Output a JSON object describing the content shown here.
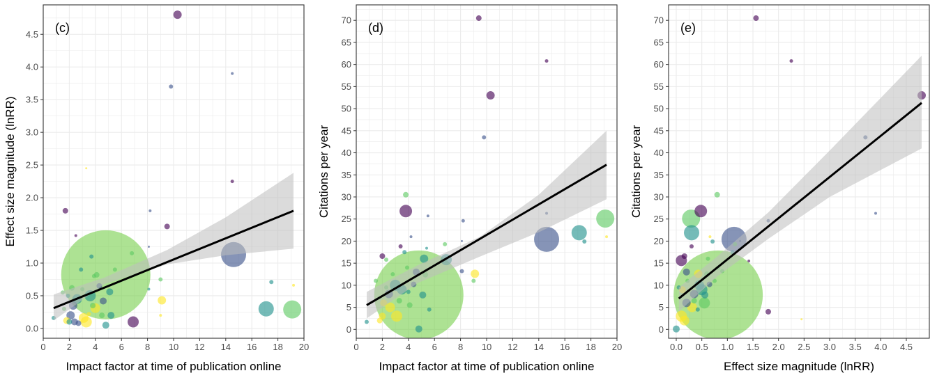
{
  "colors": {
    "panel_background": "#ffffff",
    "gridline": "#ebebeb",
    "panel_border": "#333333",
    "fit_line": "#000000",
    "ribbon": "#bdbdbd",
    "big_green": "#7ad151",
    "purple": "#440154",
    "blue": "#3b528b",
    "teal": "#21918c",
    "green": "#5ec962",
    "yellow": "#fde725"
  },
  "chart_data": [
    {
      "type": "scatter",
      "panel_label": "(c)",
      "xlabel": "Impact factor at time of publication online",
      "ylabel": "Effect size magnitude (lnRR)",
      "xlim": [
        0,
        20
      ],
      "ylim": [
        -0.15,
        4.95
      ],
      "xticks": [
        0,
        2,
        4,
        6,
        8,
        10,
        12,
        14,
        16,
        18,
        20
      ],
      "yticks": [
        0.0,
        0.5,
        1.0,
        1.5,
        2.0,
        2.5,
        3.0,
        3.5,
        4.0,
        4.5
      ],
      "ytick_labels": [
        "0.0",
        "0.5",
        "1.0",
        "1.5",
        "2.0",
        "2.5",
        "3.0",
        "3.5",
        "4.0",
        "4.5"
      ],
      "grid": true,
      "fit": {
        "x": [
          0.8,
          19.2
        ],
        "y": [
          0.31,
          1.8
        ]
      },
      "ribbon": {
        "x": [
          0.8,
          4.7,
          9.5,
          14.0,
          19.2
        ],
        "lower": [
          0.12,
          0.68,
          0.98,
          1.12,
          1.22
        ],
        "upper": [
          0.52,
          0.78,
          1.2,
          1.7,
          2.38
        ]
      },
      "points": [
        {
          "x": 4.8,
          "y": 0.82,
          "r": 64,
          "c": "big_green"
        },
        {
          "x": 10.3,
          "y": 4.8,
          "r": 6,
          "c": "purple"
        },
        {
          "x": 14.5,
          "y": 3.9,
          "r": 2,
          "c": "blue"
        },
        {
          "x": 9.8,
          "y": 3.7,
          "r": 3,
          "c": "blue"
        },
        {
          "x": 3.3,
          "y": 2.45,
          "r": 1.5,
          "c": "yellow"
        },
        {
          "x": 14.5,
          "y": 2.25,
          "r": 2.5,
          "c": "purple"
        },
        {
          "x": 1.7,
          "y": 1.8,
          "r": 4,
          "c": "purple"
        },
        {
          "x": 8.2,
          "y": 1.8,
          "r": 2,
          "c": "blue"
        },
        {
          "x": 9.5,
          "y": 1.56,
          "r": 4,
          "c": "purple"
        },
        {
          "x": 2.5,
          "y": 1.42,
          "r": 2,
          "c": "purple"
        },
        {
          "x": 8.1,
          "y": 1.25,
          "r": 1.5,
          "c": "blue"
        },
        {
          "x": 14.6,
          "y": 1.13,
          "r": 18,
          "c": "blue"
        },
        {
          "x": 6.8,
          "y": 1.15,
          "r": 3,
          "c": "green"
        },
        {
          "x": 3.7,
          "y": 1.1,
          "r": 3,
          "c": "teal"
        },
        {
          "x": 17.1,
          "y": 0.3,
          "r": 11,
          "c": "teal"
        },
        {
          "x": 19.1,
          "y": 0.29,
          "r": 13,
          "c": "green"
        },
        {
          "x": 17.5,
          "y": 0.71,
          "r": 3,
          "c": "teal"
        },
        {
          "x": 19.2,
          "y": 0.66,
          "r": 2,
          "c": "yellow"
        },
        {
          "x": 6.9,
          "y": 0.1,
          "r": 8,
          "c": "purple"
        },
        {
          "x": 9.1,
          "y": 0.43,
          "r": 6,
          "c": "yellow"
        },
        {
          "x": 9.0,
          "y": 0.2,
          "r": 2,
          "c": "yellow"
        },
        {
          "x": 9.0,
          "y": 0.75,
          "r": 3,
          "c": "green"
        },
        {
          "x": 8.1,
          "y": 0.6,
          "r": 2,
          "c": "teal"
        },
        {
          "x": 0.8,
          "y": 0.16,
          "r": 3,
          "c": "teal"
        },
        {
          "x": 3.3,
          "y": 0.1,
          "r": 8,
          "c": "yellow"
        },
        {
          "x": 3.1,
          "y": 0.16,
          "r": 7,
          "c": "yellow"
        },
        {
          "x": 2.6,
          "y": 0.45,
          "r": 7,
          "c": "teal"
        },
        {
          "x": 2.3,
          "y": 0.35,
          "r": 6,
          "c": "blue"
        },
        {
          "x": 2.1,
          "y": 0.2,
          "r": 6,
          "c": "blue"
        },
        {
          "x": 2.4,
          "y": 0.1,
          "r": 5,
          "c": "blue"
        },
        {
          "x": 2.7,
          "y": 0.08,
          "r": 4,
          "c": "blue"
        },
        {
          "x": 1.8,
          "y": 0.12,
          "r": 5,
          "c": "yellow"
        },
        {
          "x": 3.6,
          "y": 0.5,
          "r": 8,
          "c": "teal"
        },
        {
          "x": 4.0,
          "y": 0.31,
          "r": 7,
          "c": "yellow"
        },
        {
          "x": 4.3,
          "y": 0.65,
          "r": 4,
          "c": "blue"
        },
        {
          "x": 4.6,
          "y": 0.42,
          "r": 5,
          "c": "blue"
        },
        {
          "x": 5.1,
          "y": 0.56,
          "r": 5,
          "c": "teal"
        },
        {
          "x": 5.2,
          "y": 0.2,
          "r": 5,
          "c": "teal"
        },
        {
          "x": 4.8,
          "y": 0.05,
          "r": 5,
          "c": "teal"
        },
        {
          "x": 2.2,
          "y": 0.62,
          "r": 4,
          "c": "green"
        },
        {
          "x": 3.0,
          "y": 0.6,
          "r": 3,
          "c": "green"
        },
        {
          "x": 1.6,
          "y": 0.3,
          "r": 3,
          "c": "green"
        },
        {
          "x": 3.8,
          "y": 0.35,
          "r": 4,
          "c": "green"
        },
        {
          "x": 1.9,
          "y": 0.5,
          "r": 3,
          "c": "teal"
        },
        {
          "x": 4.5,
          "y": 0.2,
          "r": 4,
          "c": "green"
        },
        {
          "x": 3.5,
          "y": 0.22,
          "r": 3,
          "c": "yellow"
        },
        {
          "x": 5.5,
          "y": 0.9,
          "r": 3,
          "c": "green"
        },
        {
          "x": 2.9,
          "y": 0.9,
          "r": 3,
          "c": "teal"
        },
        {
          "x": 4.1,
          "y": 0.82,
          "r": 4,
          "c": "green"
        },
        {
          "x": 3.9,
          "y": 0.8,
          "r": 3,
          "c": "green"
        },
        {
          "x": 1.5,
          "y": 0.55,
          "r": 3,
          "c": "green"
        },
        {
          "x": 2.0,
          "y": 0.1,
          "r": 4,
          "c": "teal"
        }
      ]
    },
    {
      "type": "scatter",
      "panel_label": "(d)",
      "xlabel": "Impact factor at time of publication online",
      "ylabel": "Citations per year",
      "xlim": [
        0,
        20
      ],
      "ylim": [
        -2,
        73.5
      ],
      "xticks": [
        0,
        2,
        4,
        6,
        8,
        10,
        12,
        14,
        16,
        18,
        20
      ],
      "yticks": [
        0,
        5,
        10,
        15,
        20,
        25,
        30,
        35,
        40,
        45,
        50,
        55,
        60,
        65,
        70
      ],
      "ytick_labels": [
        "0",
        "5",
        "10",
        "15",
        "20",
        "25",
        "30",
        "35",
        "40",
        "45",
        "50",
        "55",
        "60",
        "65",
        "70"
      ],
      "grid": true,
      "fit": {
        "x": [
          0.8,
          19.2
        ],
        "y": [
          5.5,
          37.3
        ]
      },
      "ribbon": {
        "x": [
          0.8,
          4.7,
          9.5,
          14.0,
          19.2
        ],
        "lower": [
          2.5,
          10.5,
          16.5,
          22.0,
          29.5
        ],
        "upper": [
          8.5,
          14.5,
          21.0,
          30.5,
          45.0
        ]
      },
      "points": [
        {
          "x": 4.8,
          "y": 7.8,
          "r": 64,
          "c": "big_green"
        },
        {
          "x": 9.4,
          "y": 70.5,
          "r": 4,
          "c": "purple"
        },
        {
          "x": 14.6,
          "y": 60.8,
          "r": 2.5,
          "c": "purple"
        },
        {
          "x": 10.3,
          "y": 53.0,
          "r": 6,
          "c": "purple"
        },
        {
          "x": 9.8,
          "y": 43.5,
          "r": 3,
          "c": "blue"
        },
        {
          "x": 3.8,
          "y": 30.5,
          "r": 4,
          "c": "green"
        },
        {
          "x": 3.8,
          "y": 26.8,
          "r": 9,
          "c": "purple"
        },
        {
          "x": 5.5,
          "y": 25.7,
          "r": 2,
          "c": "blue"
        },
        {
          "x": 8.2,
          "y": 24.6,
          "r": 2.5,
          "c": "blue"
        },
        {
          "x": 14.6,
          "y": 26.3,
          "r": 2,
          "c": "blue"
        },
        {
          "x": 14.6,
          "y": 20.4,
          "r": 18,
          "c": "blue"
        },
        {
          "x": 17.1,
          "y": 21.9,
          "r": 11,
          "c": "teal"
        },
        {
          "x": 17.5,
          "y": 19.9,
          "r": 3,
          "c": "teal"
        },
        {
          "x": 19.1,
          "y": 25.1,
          "r": 13,
          "c": "green"
        },
        {
          "x": 19.2,
          "y": 21.0,
          "r": 2,
          "c": "yellow"
        },
        {
          "x": 9.1,
          "y": 12.6,
          "r": 6,
          "c": "yellow"
        },
        {
          "x": 9.0,
          "y": 11.0,
          "r": 3,
          "c": "green"
        },
        {
          "x": 8.1,
          "y": 13.2,
          "r": 3,
          "c": "blue"
        },
        {
          "x": 8.1,
          "y": 20.0,
          "r": 1.5,
          "c": "blue"
        },
        {
          "x": 6.8,
          "y": 19.3,
          "r": 3,
          "c": "green"
        },
        {
          "x": 6.9,
          "y": 15.8,
          "r": 8,
          "c": "teal"
        },
        {
          "x": 4.2,
          "y": 21.0,
          "r": 2,
          "c": "blue"
        },
        {
          "x": 3.4,
          "y": 18.8,
          "r": 3,
          "c": "purple"
        },
        {
          "x": 5.4,
          "y": 18.4,
          "r": 2,
          "c": "teal"
        },
        {
          "x": 2.0,
          "y": 16.6,
          "r": 4,
          "c": "purple"
        },
        {
          "x": 2.3,
          "y": 15.8,
          "r": 3,
          "c": "green"
        },
        {
          "x": 3.7,
          "y": 17.5,
          "r": 3,
          "c": "teal"
        },
        {
          "x": 5.2,
          "y": 16.0,
          "r": 6,
          "c": "teal"
        },
        {
          "x": 4.6,
          "y": 13.0,
          "r": 5,
          "c": "blue"
        },
        {
          "x": 5.3,
          "y": 12.4,
          "r": 4,
          "c": "green"
        },
        {
          "x": 3.0,
          "y": 10.0,
          "r": 8,
          "c": "teal"
        },
        {
          "x": 3.5,
          "y": 9.0,
          "r": 7,
          "c": "teal"
        },
        {
          "x": 2.5,
          "y": 8.0,
          "r": 6,
          "c": "blue"
        },
        {
          "x": 2.1,
          "y": 6.0,
          "r": 5,
          "c": "yellow"
        },
        {
          "x": 2.6,
          "y": 5.0,
          "r": 7,
          "c": "yellow"
        },
        {
          "x": 3.1,
          "y": 3.0,
          "r": 8,
          "c": "yellow"
        },
        {
          "x": 2.0,
          "y": 3.0,
          "r": 5,
          "c": "yellow"
        },
        {
          "x": 1.8,
          "y": 2.0,
          "r": 4,
          "c": "yellow"
        },
        {
          "x": 0.8,
          "y": 1.7,
          "r": 3,
          "c": "teal"
        },
        {
          "x": 4.8,
          "y": 0.1,
          "r": 5,
          "c": "teal"
        },
        {
          "x": 5.1,
          "y": 7.8,
          "r": 5,
          "c": "teal"
        },
        {
          "x": 4.4,
          "y": 10.2,
          "r": 4,
          "c": "blue"
        },
        {
          "x": 1.5,
          "y": 11.0,
          "r": 3,
          "c": "green"
        },
        {
          "x": 3.9,
          "y": 14.0,
          "r": 3,
          "c": "green"
        },
        {
          "x": 2.8,
          "y": 12.5,
          "r": 3,
          "c": "green"
        },
        {
          "x": 4.1,
          "y": 5.5,
          "r": 4,
          "c": "green"
        },
        {
          "x": 5.6,
          "y": 4.5,
          "r": 3,
          "c": "teal"
        },
        {
          "x": 2.3,
          "y": 9.5,
          "r": 3,
          "c": "green"
        },
        {
          "x": 3.3,
          "y": 6.5,
          "r": 4,
          "c": "green"
        },
        {
          "x": 4.0,
          "y": 8.5,
          "r": 3,
          "c": "teal"
        }
      ]
    },
    {
      "type": "scatter",
      "panel_label": "(e)",
      "xlabel": "Effect size magnitude (lnRR)",
      "ylabel": "Citations per year",
      "xlim": [
        -0.15,
        4.95
      ],
      "ylim": [
        -2,
        73.5
      ],
      "xticks": [
        0.0,
        0.5,
        1.0,
        1.5,
        2.0,
        2.5,
        3.0,
        3.5,
        4.0,
        4.5
      ],
      "xtick_labels": [
        "0.0",
        "0.5",
        "1.0",
        "1.5",
        "2.0",
        "2.5",
        "3.0",
        "3.5",
        "4.0",
        "4.5"
      ],
      "yticks": [
        0,
        5,
        10,
        15,
        20,
        25,
        30,
        35,
        40,
        45,
        50,
        55,
        60,
        65,
        70
      ],
      "ytick_labels": [
        "0",
        "5",
        "10",
        "15",
        "20",
        "25",
        "30",
        "35",
        "40",
        "45",
        "50",
        "55",
        "60",
        "65",
        "70"
      ],
      "grid": true,
      "fit": {
        "x": [
          0.05,
          4.8
        ],
        "y": [
          7.0,
          51.3
        ]
      },
      "ribbon": {
        "x": [
          0.05,
          0.8,
          1.8,
          3.0,
          4.8
        ],
        "lower": [
          4.0,
          12.0,
          20.5,
          30.0,
          41.0
        ],
        "upper": [
          9.5,
          16.5,
          26.5,
          40.5,
          62.0
        ]
      },
      "points": [
        {
          "x": 0.82,
          "y": 7.8,
          "r": 64,
          "c": "big_green"
        },
        {
          "x": 1.56,
          "y": 70.5,
          "r": 4,
          "c": "purple"
        },
        {
          "x": 2.25,
          "y": 60.8,
          "r": 2.5,
          "c": "purple"
        },
        {
          "x": 4.8,
          "y": 53.0,
          "r": 6,
          "c": "purple"
        },
        {
          "x": 3.7,
          "y": 43.5,
          "r": 3,
          "c": "blue"
        },
        {
          "x": 3.9,
          "y": 26.3,
          "r": 2,
          "c": "blue"
        },
        {
          "x": 0.8,
          "y": 30.5,
          "r": 4,
          "c": "green"
        },
        {
          "x": 0.48,
          "y": 26.8,
          "r": 9,
          "c": "purple"
        },
        {
          "x": 0.29,
          "y": 25.1,
          "r": 13,
          "c": "green"
        },
        {
          "x": 0.3,
          "y": 21.9,
          "r": 11,
          "c": "teal"
        },
        {
          "x": 1.13,
          "y": 20.4,
          "r": 18,
          "c": "blue"
        },
        {
          "x": 1.8,
          "y": 24.6,
          "r": 2.5,
          "c": "blue"
        },
        {
          "x": 1.8,
          "y": 4.0,
          "r": 4,
          "c": "purple"
        },
        {
          "x": 2.45,
          "y": 2.3,
          "r": 1.5,
          "c": "yellow"
        },
        {
          "x": 0.1,
          "y": 15.6,
          "r": 8,
          "c": "purple"
        },
        {
          "x": 0.16,
          "y": 16.6,
          "r": 4,
          "c": "purple"
        },
        {
          "x": 0.71,
          "y": 19.9,
          "r": 3,
          "c": "teal"
        },
        {
          "x": 0.66,
          "y": 21.0,
          "r": 2,
          "c": "yellow"
        },
        {
          "x": 0.43,
          "y": 12.6,
          "r": 6,
          "c": "yellow"
        },
        {
          "x": 1.25,
          "y": 20.0,
          "r": 1.5,
          "c": "blue"
        },
        {
          "x": 1.42,
          "y": 15.5,
          "r": 2,
          "c": "purple"
        },
        {
          "x": 1.15,
          "y": 19.3,
          "r": 3,
          "c": "green"
        },
        {
          "x": 0.0,
          "y": 0.1,
          "r": 5,
          "c": "teal"
        },
        {
          "x": 0.1,
          "y": 3.0,
          "r": 8,
          "c": "yellow"
        },
        {
          "x": 0.16,
          "y": 2.0,
          "r": 7,
          "c": "yellow"
        },
        {
          "x": 0.2,
          "y": 6.0,
          "r": 6,
          "c": "blue"
        },
        {
          "x": 0.35,
          "y": 8.0,
          "r": 6,
          "c": "blue"
        },
        {
          "x": 0.45,
          "y": 10.0,
          "r": 7,
          "c": "teal"
        },
        {
          "x": 0.5,
          "y": 9.0,
          "r": 8,
          "c": "teal"
        },
        {
          "x": 0.56,
          "y": 7.8,
          "r": 5,
          "c": "teal"
        },
        {
          "x": 0.31,
          "y": 5.0,
          "r": 7,
          "c": "yellow"
        },
        {
          "x": 0.12,
          "y": 9.0,
          "r": 5,
          "c": "yellow"
        },
        {
          "x": 0.6,
          "y": 12.5,
          "r": 4,
          "c": "green"
        },
        {
          "x": 0.9,
          "y": 13.2,
          "r": 3,
          "c": "green"
        },
        {
          "x": 0.62,
          "y": 16.0,
          "r": 3,
          "c": "green"
        },
        {
          "x": 0.75,
          "y": 11.0,
          "r": 3,
          "c": "green"
        },
        {
          "x": 0.2,
          "y": 13.0,
          "r": 5,
          "c": "blue"
        },
        {
          "x": 1.1,
          "y": 17.5,
          "r": 3,
          "c": "teal"
        },
        {
          "x": 0.3,
          "y": 18.8,
          "r": 3,
          "c": "purple"
        },
        {
          "x": 0.65,
          "y": 10.2,
          "r": 4,
          "c": "blue"
        },
        {
          "x": 0.82,
          "y": 14.0,
          "r": 3,
          "c": "green"
        },
        {
          "x": 0.42,
          "y": 4.5,
          "r": 3,
          "c": "teal"
        },
        {
          "x": 0.35,
          "y": 6.5,
          "r": 4,
          "c": "green"
        },
        {
          "x": 0.22,
          "y": 11.0,
          "r": 3,
          "c": "green"
        },
        {
          "x": 0.55,
          "y": 6.0,
          "r": 8,
          "c": "green"
        },
        {
          "x": 0.05,
          "y": 9.5,
          "r": 3,
          "c": "teal"
        }
      ]
    }
  ]
}
